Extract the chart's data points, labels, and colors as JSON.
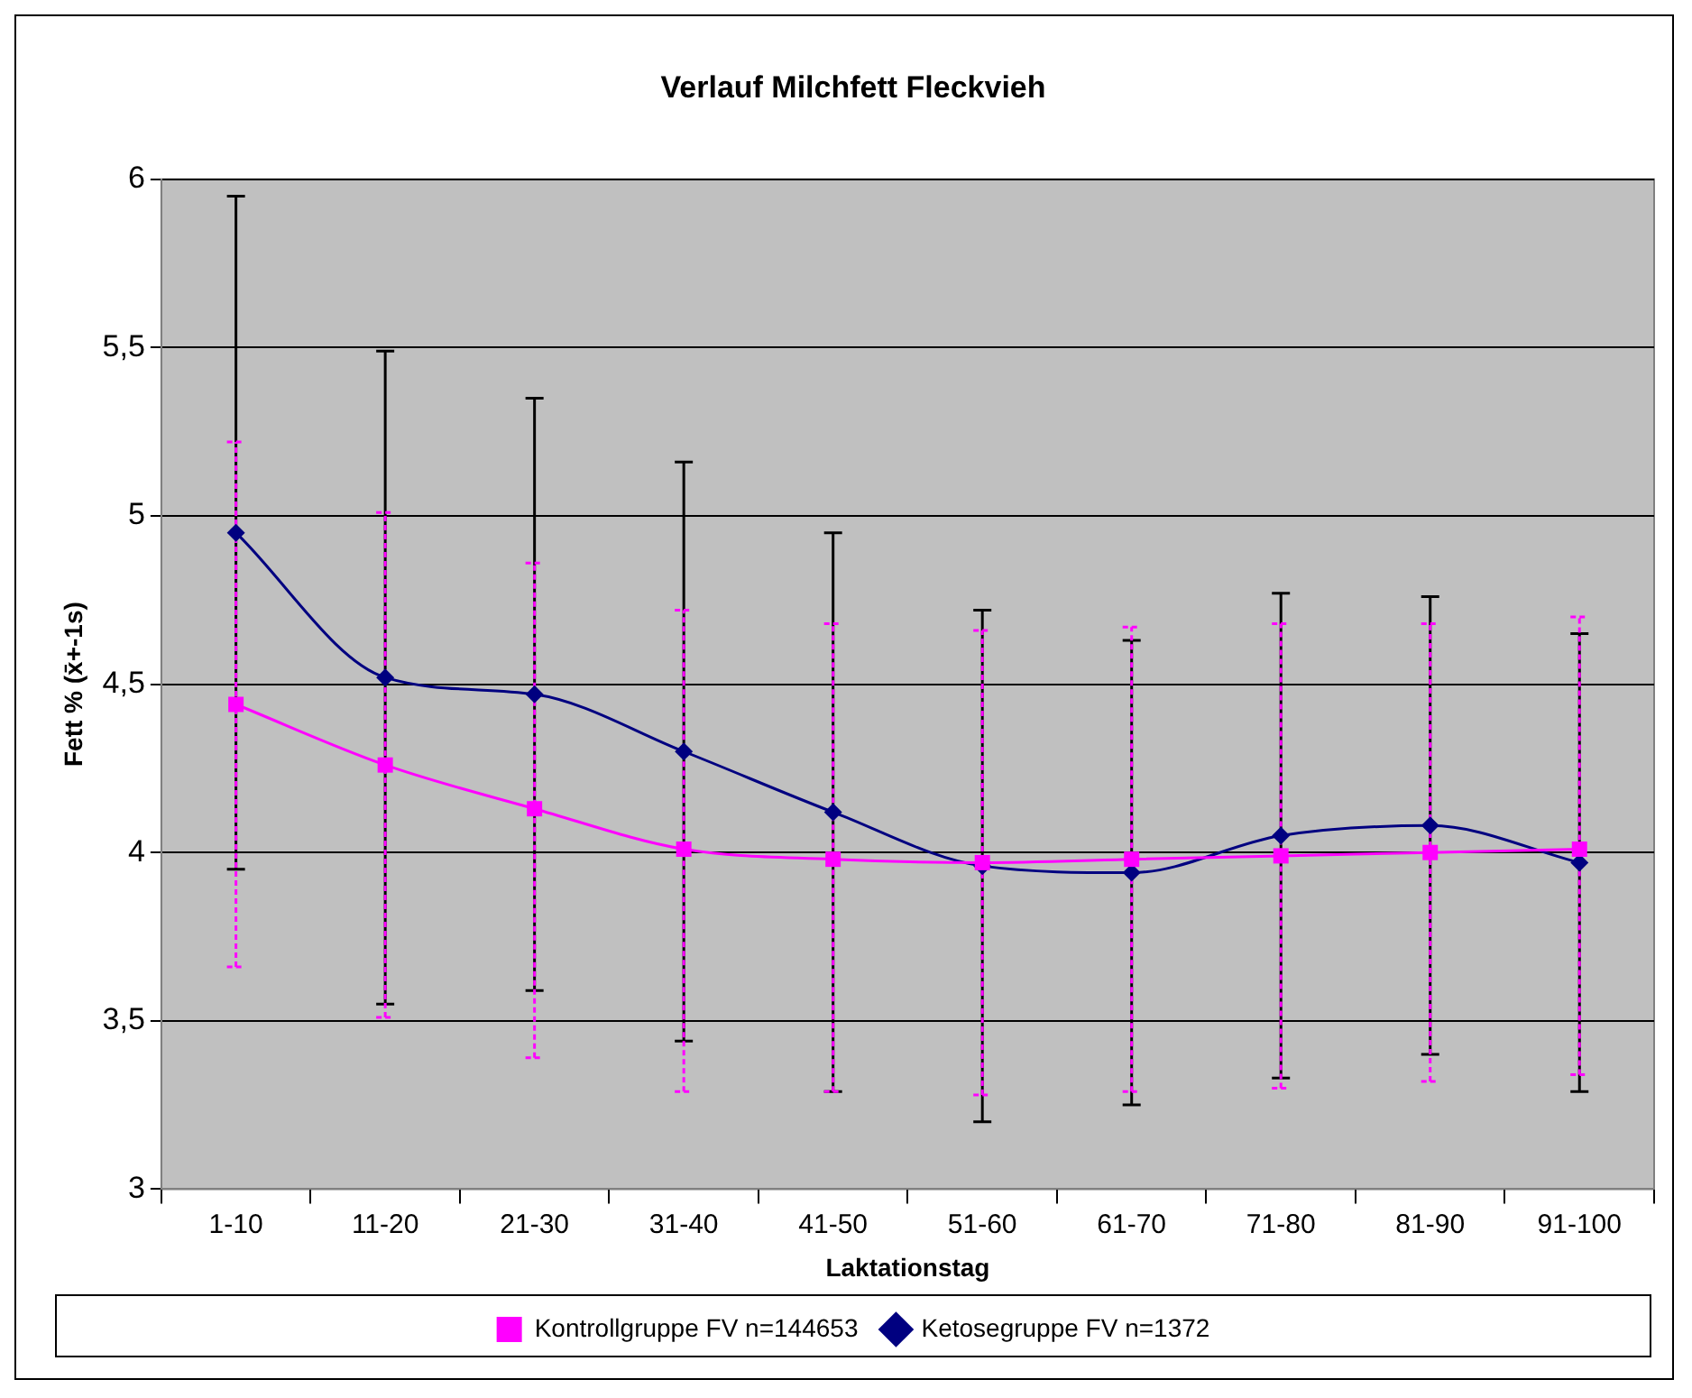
{
  "chart_data": {
    "type": "line",
    "title": "Verlauf Milchfett Fleckvieh",
    "xlabel": "Laktationstag",
    "ylabel": "Fett % (x̄+-1s)",
    "categories": [
      "1-10",
      "11-20",
      "21-30",
      "31-40",
      "41-50",
      "51-60",
      "61-70",
      "71-80",
      "81-90",
      "91-100"
    ],
    "series": [
      {
        "name": "Ketosegruppe FV n=1372",
        "color": "#000080",
        "marker": "diamond",
        "values": [
          4.95,
          4.52,
          4.47,
          4.3,
          4.12,
          3.96,
          3.94,
          4.05,
          4.08,
          3.97
        ],
        "errors": [
          [
            3.95,
            5.95
          ],
          [
            3.55,
            5.49
          ],
          [
            3.59,
            5.35
          ],
          [
            3.44,
            5.16
          ],
          [
            3.29,
            4.95
          ],
          [
            3.2,
            4.72
          ],
          [
            3.25,
            4.63
          ],
          [
            3.33,
            4.77
          ],
          [
            3.4,
            4.76
          ],
          [
            3.29,
            4.65
          ]
        ]
      },
      {
        "name": "Kontrollgruppe FV n=144653",
        "color": "#ff00ff",
        "marker": "square",
        "values": [
          4.44,
          4.26,
          4.13,
          4.01,
          3.98,
          3.97,
          3.98,
          3.99,
          4.0,
          4.01
        ],
        "errors": [
          [
            3.66,
            5.22
          ],
          [
            3.51,
            5.01
          ],
          [
            3.39,
            4.86
          ],
          [
            3.29,
            4.72
          ],
          [
            3.29,
            4.68
          ],
          [
            3.28,
            4.66
          ],
          [
            3.29,
            4.67
          ],
          [
            3.3,
            4.68
          ],
          [
            3.32,
            4.68
          ],
          [
            3.34,
            4.7
          ]
        ]
      }
    ],
    "ylim": [
      3,
      6
    ],
    "yticks": [
      3,
      {
        "value": 3.5,
        "label": "3,5"
      },
      4,
      {
        "value": 4.5,
        "label": "4,5"
      },
      5,
      {
        "value": 5.5,
        "label": "5,5"
      },
      6
    ],
    "grid": "y",
    "legend": "bottom"
  }
}
